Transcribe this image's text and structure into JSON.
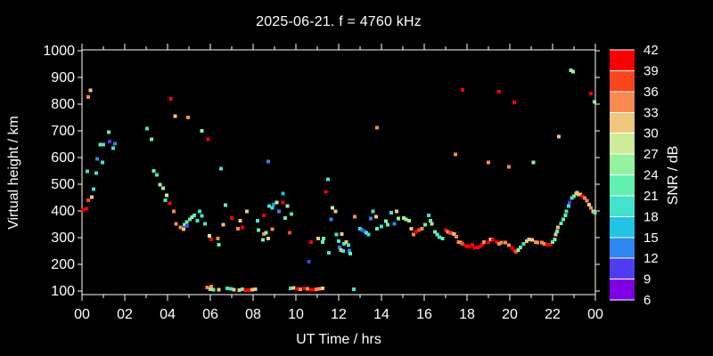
{
  "chart_data": {
    "type": "scatter",
    "title": "2025-06-21. f = 4760 kHz",
    "xlabel": "UT Time / hrs",
    "ylabel": "Virtual height / km",
    "background_color": "#000000",
    "axis_color": "#ffffff",
    "grid": false,
    "marker": "filled-square",
    "marker_size_px": 4,
    "xlim": [
      0,
      24
    ],
    "ylim": [
      100,
      1000
    ],
    "xtick_major_every_hours": 2,
    "xtick_minor_every_hours": 1,
    "xtick_labels": [
      "00",
      "02",
      "04",
      "06",
      "08",
      "10",
      "12",
      "14",
      "16",
      "18",
      "20",
      "22",
      "00"
    ],
    "ytick_labels": [
      "100",
      "200",
      "300",
      "400",
      "500",
      "600",
      "700",
      "800",
      "900",
      "1000"
    ],
    "colorbar": {
      "label": "SNR / dB",
      "min": 6,
      "max": 42,
      "step": 3,
      "tick_labels": [
        "6",
        "9",
        "12",
        "15",
        "18",
        "21",
        "24",
        "27",
        "30",
        "33",
        "36",
        "39",
        "42"
      ],
      "colors_low_to_high": [
        "#8000e6",
        "#4f3cf0",
        "#2e86f0",
        "#20c2e6",
        "#43e2cd",
        "#62f0b0",
        "#93f29e",
        "#cdeb99",
        "#eec77d",
        "#fb8a50",
        "#f9461d",
        "#fc0000"
      ],
      "position": "right"
    },
    "points_format": [
      "ut_hours",
      "virtual_height_km",
      "snr_db"
    ],
    "points": [
      [
        0.05,
        405,
        40
      ],
      [
        0.2,
        408,
        40
      ],
      [
        0.3,
        440,
        37
      ],
      [
        0.45,
        452,
        31
      ],
      [
        0.25,
        548,
        19
      ],
      [
        0.55,
        482,
        19
      ],
      [
        0.3,
        827,
        34
      ],
      [
        0.4,
        852,
        31
      ],
      [
        0.67,
        542,
        19
      ],
      [
        0.7,
        595,
        13
      ],
      [
        0.85,
        649,
        22
      ],
      [
        0.95,
        582,
        19
      ],
      [
        1.0,
        648,
        19
      ],
      [
        1.25,
        695,
        22
      ],
      [
        1.3,
        660,
        10
      ],
      [
        1.45,
        635,
        19
      ],
      [
        1.55,
        652,
        13
      ],
      [
        3.05,
        708,
        19
      ],
      [
        3.25,
        668,
        22
      ],
      [
        3.35,
        550,
        22
      ],
      [
        3.5,
        535,
        19
      ],
      [
        3.65,
        498,
        25
      ],
      [
        3.8,
        485,
        25
      ],
      [
        3.95,
        458,
        28
      ],
      [
        3.9,
        440,
        19
      ],
      [
        4.1,
        428,
        40
      ],
      [
        4.3,
        398,
        34
      ],
      [
        4.4,
        352,
        34
      ],
      [
        4.6,
        338,
        34
      ],
      [
        4.75,
        331,
        31
      ],
      [
        4.8,
        348,
        22
      ],
      [
        4.9,
        358,
        22
      ],
      [
        4.92,
        344,
        10
      ],
      [
        5.05,
        368,
        22
      ],
      [
        5.15,
        377,
        25
      ],
      [
        5.25,
        384,
        22
      ],
      [
        5.4,
        364,
        19
      ],
      [
        5.5,
        398,
        19
      ],
      [
        5.6,
        381,
        19
      ],
      [
        5.75,
        351,
        19
      ],
      [
        5.95,
        307,
        28
      ],
      [
        4.15,
        820,
        40
      ],
      [
        4.35,
        755,
        31
      ],
      [
        4.95,
        750,
        34
      ],
      [
        5.6,
        700,
        25
      ],
      [
        5.9,
        668,
        40
      ],
      [
        5.85,
        113,
        34
      ],
      [
        6.05,
        117,
        34
      ],
      [
        6.0,
        107,
        31
      ],
      [
        6.15,
        105,
        22
      ],
      [
        6.4,
        105,
        31
      ],
      [
        6.8,
        110,
        19
      ],
      [
        6.95,
        108,
        19
      ],
      [
        7.1,
        105,
        31
      ],
      [
        7.35,
        104,
        31
      ],
      [
        7.5,
        107,
        22
      ],
      [
        7.65,
        104,
        40
      ],
      [
        7.8,
        104,
        40
      ],
      [
        7.95,
        105,
        31
      ],
      [
        8.1,
        107,
        31
      ],
      [
        6.05,
        294,
        40
      ],
      [
        6.35,
        297,
        34
      ],
      [
        6.4,
        274,
        22
      ],
      [
        6.5,
        558,
        19
      ],
      [
        6.6,
        348,
        31
      ],
      [
        6.7,
        421,
        22
      ],
      [
        7.0,
        374,
        40
      ],
      [
        7.3,
        334,
        34
      ],
      [
        7.5,
        338,
        40
      ],
      [
        7.4,
        364,
        31
      ],
      [
        7.7,
        398,
        31
      ],
      [
        8.2,
        364,
        19
      ],
      [
        8.25,
        328,
        22
      ],
      [
        8.45,
        291,
        22
      ],
      [
        8.5,
        384,
        40
      ],
      [
        8.5,
        314,
        34
      ],
      [
        8.6,
        318,
        25
      ],
      [
        8.7,
        297,
        31
      ],
      [
        8.7,
        585,
        13
      ],
      [
        8.75,
        418,
        19
      ],
      [
        8.9,
        411,
        19
      ],
      [
        8.9,
        331,
        34
      ],
      [
        8.95,
        425,
        13
      ],
      [
        9.1,
        431,
        28
      ],
      [
        9.2,
        398,
        13
      ],
      [
        9.4,
        465,
        16
      ],
      [
        9.4,
        431,
        40
      ],
      [
        9.5,
        374,
        22
      ],
      [
        9.6,
        418,
        25
      ],
      [
        9.7,
        318,
        37
      ],
      [
        9.8,
        388,
        19
      ],
      [
        10.6,
        210,
        10
      ],
      [
        10.7,
        283,
        40
      ],
      [
        11.05,
        297,
        31
      ],
      [
        11.25,
        284,
        22
      ],
      [
        11.3,
        297,
        22
      ],
      [
        11.4,
        471,
        40
      ],
      [
        11.5,
        518,
        19
      ],
      [
        11.55,
        244,
        19
      ],
      [
        11.65,
        368,
        13
      ],
      [
        11.7,
        411,
        28
      ],
      [
        11.85,
        398,
        31
      ],
      [
        11.9,
        311,
        19
      ],
      [
        9.75,
        110,
        19
      ],
      [
        9.9,
        112,
        31
      ],
      [
        10.05,
        108,
        40
      ],
      [
        10.2,
        107,
        34
      ],
      [
        10.4,
        110,
        40
      ],
      [
        10.55,
        108,
        34
      ],
      [
        10.7,
        105,
        40
      ],
      [
        10.85,
        105,
        40
      ],
      [
        10.95,
        107,
        34
      ],
      [
        11.1,
        108,
        34
      ],
      [
        11.25,
        110,
        31
      ],
      [
        12.7,
        107,
        19
      ],
      [
        12.0,
        287,
        19
      ],
      [
        12.05,
        264,
        13
      ],
      [
        12.1,
        254,
        31
      ],
      [
        12.15,
        314,
        31
      ],
      [
        12.2,
        250,
        19
      ],
      [
        12.25,
        277,
        19
      ],
      [
        12.35,
        284,
        31
      ],
      [
        12.45,
        271,
        19
      ],
      [
        12.5,
        251,
        13
      ],
      [
        12.55,
        240,
        22
      ],
      [
        12.75,
        378,
        34
      ],
      [
        13.0,
        334,
        19
      ],
      [
        13.1,
        328,
        13
      ],
      [
        13.2,
        324,
        10
      ],
      [
        13.3,
        318,
        19
      ],
      [
        13.4,
        311,
        19
      ],
      [
        13.5,
        371,
        13
      ],
      [
        13.6,
        398,
        19
      ],
      [
        13.75,
        378,
        31
      ],
      [
        13.8,
        334,
        22
      ],
      [
        13.8,
        712,
        34
      ],
      [
        14.0,
        341,
        19
      ],
      [
        14.2,
        361,
        25
      ],
      [
        14.3,
        348,
        22
      ],
      [
        14.45,
        394,
        19
      ],
      [
        14.6,
        351,
        13
      ],
      [
        14.7,
        398,
        31
      ],
      [
        14.8,
        371,
        25
      ],
      [
        15.05,
        374,
        25
      ],
      [
        15.15,
        368,
        25
      ],
      [
        15.3,
        364,
        25
      ],
      [
        15.4,
        334,
        31
      ],
      [
        15.5,
        311,
        34
      ],
      [
        15.6,
        321,
        40
      ],
      [
        15.75,
        328,
        37
      ],
      [
        15.9,
        334,
        34
      ],
      [
        16.05,
        348,
        22
      ],
      [
        16.2,
        384,
        19
      ],
      [
        16.3,
        364,
        22
      ],
      [
        16.35,
        351,
        25
      ],
      [
        16.5,
        321,
        22
      ],
      [
        16.6,
        311,
        22
      ],
      [
        16.7,
        301,
        19
      ],
      [
        16.85,
        297,
        22
      ],
      [
        17.0,
        328,
        40
      ],
      [
        17.1,
        321,
        34
      ],
      [
        17.2,
        318,
        37
      ],
      [
        17.3,
        316,
        37
      ],
      [
        17.4,
        314,
        31
      ],
      [
        17.5,
        304,
        34
      ],
      [
        17.6,
        284,
        34
      ],
      [
        17.7,
        282,
        34
      ],
      [
        17.8,
        277,
        37
      ],
      [
        17.95,
        268,
        40
      ],
      [
        18.05,
        266,
        40
      ],
      [
        18.15,
        268,
        40
      ],
      [
        17.45,
        612,
        34
      ],
      [
        17.8,
        853,
        40
      ],
      [
        19.5,
        846,
        40
      ],
      [
        20.2,
        806,
        40
      ],
      [
        19.0,
        582,
        34
      ],
      [
        19.95,
        565,
        34
      ],
      [
        21.1,
        582,
        25
      ],
      [
        22.3,
        679,
        31
      ],
      [
        22.85,
        926,
        25
      ],
      [
        22.95,
        921,
        25
      ],
      [
        23.8,
        840,
        40
      ],
      [
        23.95,
        809,
        25
      ],
      [
        18.25,
        274,
        40
      ],
      [
        18.35,
        261,
        40
      ],
      [
        18.5,
        263,
        40
      ],
      [
        18.6,
        267,
        40
      ],
      [
        18.7,
        274,
        40
      ],
      [
        18.8,
        284,
        34
      ],
      [
        19.0,
        281,
        40
      ],
      [
        19.1,
        294,
        31
      ],
      [
        19.2,
        291,
        40
      ],
      [
        19.4,
        284,
        40
      ],
      [
        19.5,
        277,
        34
      ],
      [
        19.6,
        281,
        34
      ],
      [
        19.8,
        281,
        34
      ],
      [
        19.95,
        271,
        34
      ],
      [
        20.1,
        261,
        40
      ],
      [
        20.2,
        251,
        40
      ],
      [
        20.3,
        247,
        37
      ],
      [
        20.4,
        254,
        25
      ],
      [
        20.5,
        264,
        22
      ],
      [
        20.65,
        277,
        19
      ],
      [
        20.8,
        287,
        31
      ],
      [
        20.9,
        294,
        31
      ],
      [
        21.05,
        291,
        31
      ],
      [
        21.2,
        284,
        34
      ],
      [
        21.3,
        281,
        34
      ],
      [
        21.5,
        281,
        34
      ],
      [
        21.6,
        277,
        34
      ],
      [
        21.75,
        274,
        40
      ],
      [
        21.9,
        274,
        40
      ],
      [
        22.0,
        284,
        22
      ],
      [
        22.1,
        294,
        22
      ],
      [
        22.15,
        311,
        31
      ],
      [
        22.2,
        324,
        22
      ],
      [
        22.25,
        338,
        31
      ],
      [
        22.4,
        354,
        22
      ],
      [
        22.5,
        368,
        22
      ],
      [
        22.6,
        384,
        22
      ],
      [
        22.65,
        398,
        19
      ],
      [
        22.75,
        418,
        19
      ],
      [
        22.8,
        431,
        10
      ],
      [
        22.9,
        448,
        19
      ],
      [
        23.0,
        455,
        22
      ],
      [
        23.1,
        465,
        31
      ],
      [
        23.15,
        468,
        31
      ],
      [
        23.2,
        461,
        31
      ],
      [
        23.3,
        461,
        31
      ],
      [
        23.4,
        455,
        40
      ],
      [
        23.5,
        448,
        34
      ],
      [
        23.6,
        438,
        34
      ],
      [
        23.7,
        424,
        31
      ],
      [
        23.8,
        411,
        34
      ],
      [
        23.9,
        398,
        31
      ],
      [
        23.98,
        393,
        22
      ]
    ]
  }
}
